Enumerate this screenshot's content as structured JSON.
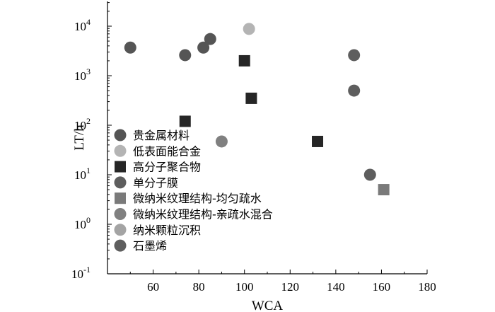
{
  "chart_data": {
    "type": "scatter",
    "xlabel": "WCA",
    "ylabel": "LT/h",
    "xlim": [
      40,
      180
    ],
    "ylim_log10": [
      -1,
      4.5
    ],
    "y_scale": "log",
    "x_ticks": [
      60,
      80,
      100,
      120,
      140,
      160,
      180
    ],
    "y_ticks": [
      {
        "base": "10",
        "exp": "-1",
        "value": 0.1
      },
      {
        "base": "10",
        "exp": "0",
        "value": 1
      },
      {
        "base": "10",
        "exp": "1",
        "value": 10
      },
      {
        "base": "10",
        "exp": "2",
        "value": 100
      },
      {
        "base": "10",
        "exp": "3",
        "value": 1000
      },
      {
        "base": "10",
        "exp": "4",
        "value": 10000
      }
    ],
    "legend_position": "bottom-left",
    "series": [
      {
        "name": "贵金属材料",
        "marker": "circle",
        "color": "#555555",
        "points": [
          [
            50,
            3700
          ],
          [
            74,
            2600
          ],
          [
            82,
            3700
          ],
          [
            85,
            5500
          ]
        ]
      },
      {
        "name": "低表面能合金",
        "marker": "circle",
        "color": "#b4b4b4",
        "points": [
          [
            102,
            8800
          ]
        ]
      },
      {
        "name": "高分子聚合物",
        "marker": "square",
        "color": "#262626",
        "points": [
          [
            100,
            2000
          ],
          [
            103,
            350
          ],
          [
            74,
            120
          ],
          [
            132,
            47
          ]
        ]
      },
      {
        "name": "单分子膜",
        "marker": "circle",
        "color": "#5e5e5e",
        "points": [
          [
            148,
            2600
          ],
          [
            148,
            500
          ]
        ]
      },
      {
        "name": "微纳米纹理结构-均匀疏水",
        "marker": "square",
        "color": "#7a7a7a",
        "points": [
          [
            161,
            5
          ]
        ]
      },
      {
        "name": "微纳米纹理结构-亲疏水混合",
        "marker": "circle",
        "color": "#808080",
        "points": [
          [
            90,
            47
          ]
        ]
      },
      {
        "name": "纳米颗粒沉积",
        "marker": "circle",
        "color": "#a4a4a4",
        "points": []
      },
      {
        "name": "石墨烯",
        "marker": "circle",
        "color": "#5e5e5e",
        "points": [
          [
            155,
            10
          ]
        ]
      }
    ]
  }
}
